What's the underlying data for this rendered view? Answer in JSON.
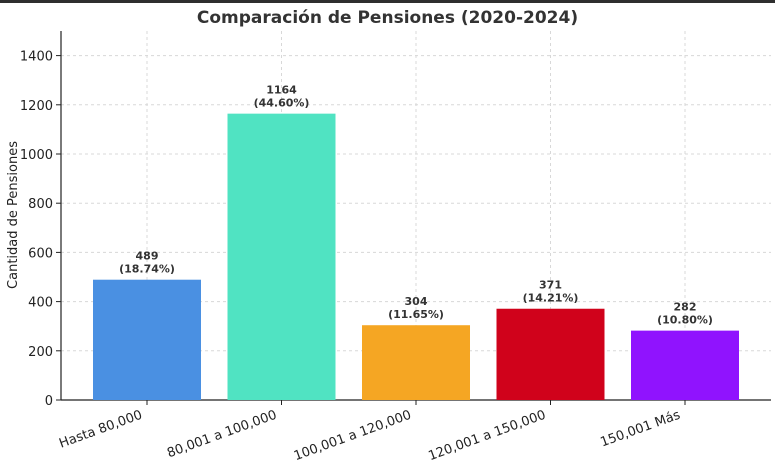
{
  "chart_data": {
    "type": "bar",
    "title": "Comparación de Pensiones (2020-2024)",
    "xlabel": "",
    "ylabel": "Cantidad de Pensiones",
    "ylim": [
      0,
      1500
    ],
    "yticks": [
      "0",
      "200",
      "400",
      "600",
      "800",
      "1000",
      "1200",
      "1400"
    ],
    "ytick_values": [
      0,
      200,
      400,
      600,
      800,
      1000,
      1200,
      1400
    ],
    "grid": true,
    "categories": [
      "Hasta 80,000",
      "80,001 a 100,000",
      "100,001 a 120,000",
      "120,001 a 150,000",
      "150,001 Más"
    ],
    "values": [
      489,
      1164,
      304,
      371,
      282
    ],
    "value_labels": [
      "489",
      "1164",
      "304",
      "371",
      "282"
    ],
    "percent_labels": [
      "(18.74%)",
      "(44.60%)",
      "(11.65%)",
      "(14.21%)",
      "(10.80%)"
    ],
    "colors": [
      "#4a90e2",
      "#50e3c2",
      "#f5a623",
      "#d0021b",
      "#9013fe"
    ]
  }
}
